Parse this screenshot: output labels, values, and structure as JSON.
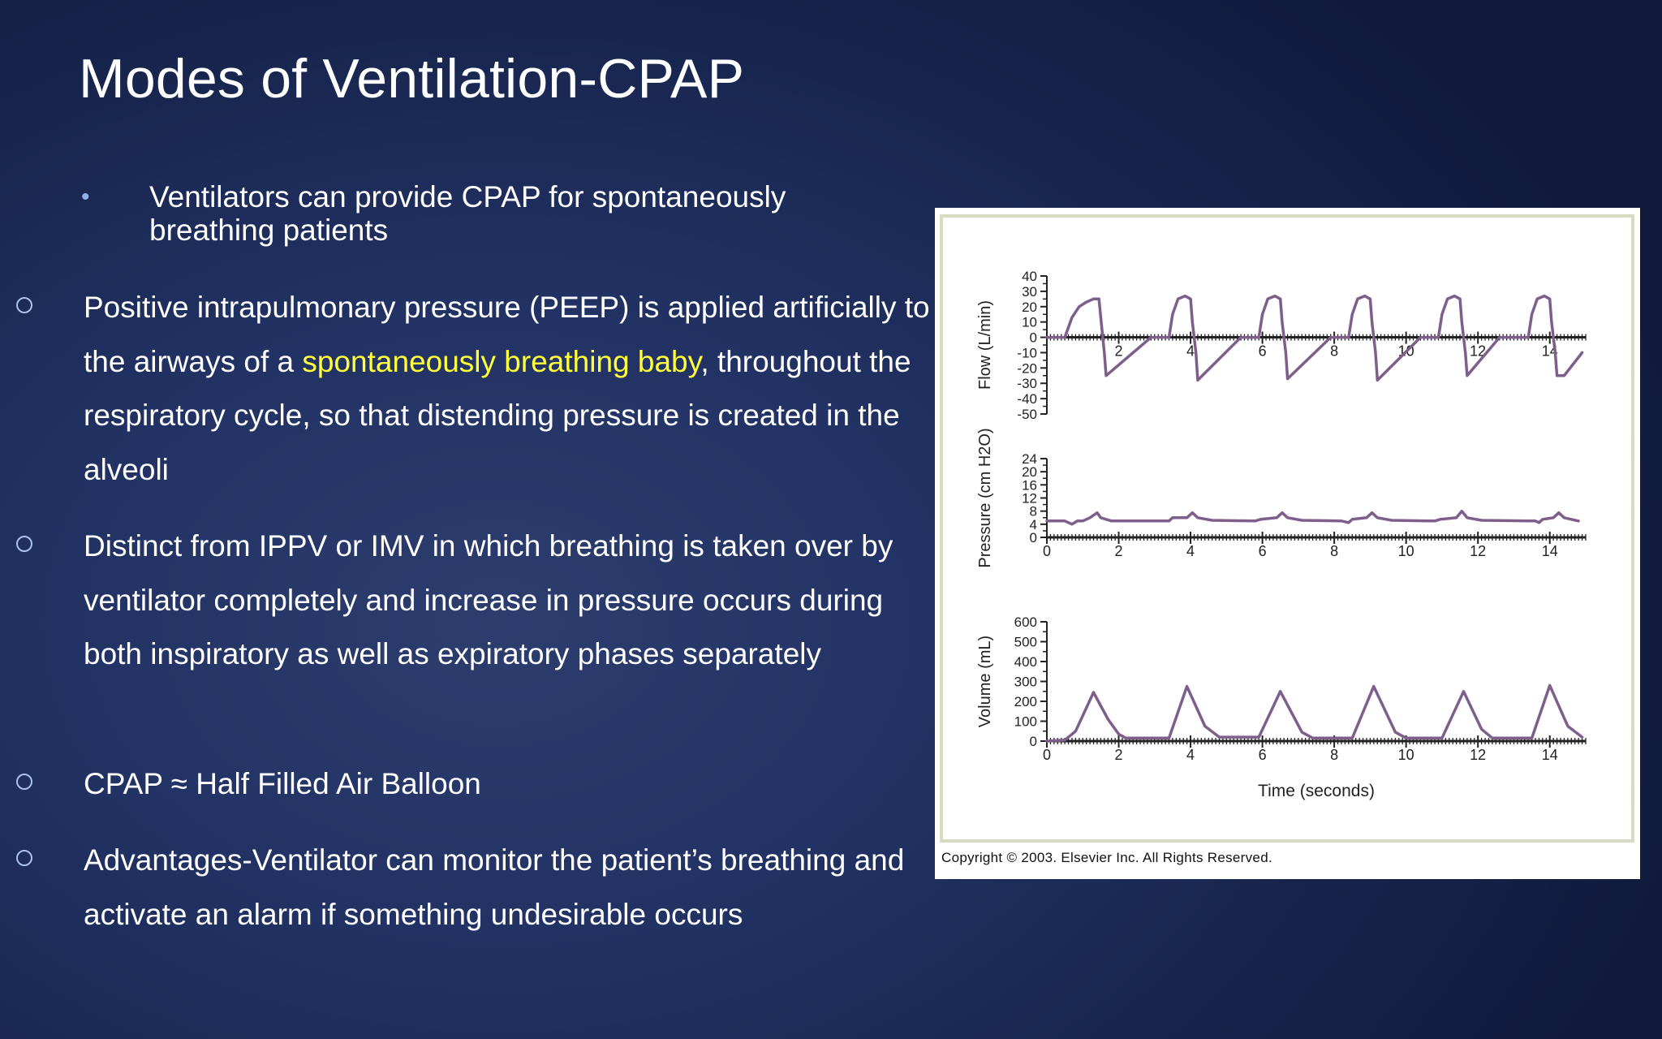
{
  "slide": {
    "title": "Modes of Ventilation-CPAP",
    "sub_bullet": {
      "marker": "•",
      "text": "Ventilators can provide CPAP for spontaneously breathing patients"
    },
    "bullets": [
      {
        "text_before": "Positive intrapulmonary pressure (PEEP) is applied artificially to the airways of a ",
        "highlight": "spontaneously breathing baby",
        "text_after": ", throughout the respiratory cycle, so that distending pressure is created in the alveoli"
      },
      {
        "text_before": "Distinct from IPPV or IMV in which breathing is taken over by ventilator completely and increase in pressure occurs during both inspiratory as well as expiratory phases separately",
        "highlight": "",
        "text_after": ""
      },
      {
        "text_before": "CPAP ≈ Half Filled Air Balloon",
        "highlight": "",
        "text_after": ""
      },
      {
        "text_before": "Advantages-Ventilator can monitor the patient’s breathing and activate an alarm if something undesirable occurs",
        "highlight": "",
        "text_after": ""
      }
    ],
    "colors": {
      "highlight": "#ffff3a",
      "trace": "#7e5f8c",
      "axis": "#222222"
    }
  },
  "figure": {
    "copyright": "Copyright © 2003. Elsevier Inc. All Rights Reserved."
  },
  "chart_data": [
    {
      "type": "line",
      "ylabel": "Flow (L/min)",
      "xlabel": "",
      "xlim": [
        0,
        15
      ],
      "ylim": [
        -50,
        40
      ],
      "x_ticks": [
        2,
        4,
        6,
        8,
        10,
        12,
        14
      ],
      "y_ticks": [
        -50,
        -40,
        -30,
        -20,
        -10,
        0,
        10,
        20,
        30,
        40
      ],
      "series": [
        {
          "points": [
            [
              0,
              0
            ],
            [
              0.5,
              0
            ],
            [
              0.7,
              13
            ],
            [
              0.9,
              20
            ],
            [
              1.1,
              23
            ],
            [
              1.3,
              25
            ],
            [
              1.45,
              25
            ],
            [
              1.5,
              13
            ],
            [
              1.6,
              -10
            ],
            [
              1.65,
              -25
            ],
            [
              2.9,
              0
            ],
            [
              3.4,
              0
            ],
            [
              3.5,
              15
            ],
            [
              3.65,
              25
            ],
            [
              3.85,
              27
            ],
            [
              4.0,
              25
            ],
            [
              4.05,
              10
            ],
            [
              4.15,
              -10
            ],
            [
              4.2,
              -28
            ],
            [
              5.4,
              0
            ],
            [
              5.9,
              0
            ],
            [
              6.0,
              15
            ],
            [
              6.15,
              25
            ],
            [
              6.35,
              27
            ],
            [
              6.5,
              25
            ],
            [
              6.55,
              10
            ],
            [
              6.65,
              -10
            ],
            [
              6.7,
              -27
            ],
            [
              7.9,
              0
            ],
            [
              8.4,
              0
            ],
            [
              8.5,
              15
            ],
            [
              8.65,
              25
            ],
            [
              8.85,
              27
            ],
            [
              9.0,
              25
            ],
            [
              9.05,
              10
            ],
            [
              9.15,
              -10
            ],
            [
              9.2,
              -28
            ],
            [
              10.4,
              0
            ],
            [
              10.9,
              0
            ],
            [
              11.0,
              15
            ],
            [
              11.15,
              25
            ],
            [
              11.35,
              27
            ],
            [
              11.5,
              25
            ],
            [
              11.55,
              10
            ],
            [
              11.65,
              -10
            ],
            [
              11.7,
              -25
            ],
            [
              12.6,
              0
            ],
            [
              13.4,
              0
            ],
            [
              13.5,
              15
            ],
            [
              13.65,
              25
            ],
            [
              13.85,
              27
            ],
            [
              14.0,
              25
            ],
            [
              14.05,
              10
            ],
            [
              14.15,
              -10
            ],
            [
              14.2,
              -25
            ],
            [
              14.4,
              -25
            ],
            [
              14.9,
              -10
            ]
          ]
        }
      ]
    },
    {
      "type": "line",
      "ylabel": "Pressure (cm H2O)",
      "xlabel": "",
      "xlim": [
        0,
        15
      ],
      "ylim": [
        0,
        24
      ],
      "x_ticks": [
        0,
        2,
        4,
        6,
        8,
        10,
        12,
        14
      ],
      "x_tick_labels": [
        "0",
        "2",
        "4",
        "6",
        "8",
        "10",
        "12",
        "14"
      ],
      "y_ticks": [
        0,
        4,
        8,
        12,
        16,
        20,
        24
      ],
      "series": [
        {
          "points": [
            [
              0,
              5
            ],
            [
              0.5,
              5
            ],
            [
              0.7,
              4
            ],
            [
              0.85,
              5
            ],
            [
              1.0,
              5
            ],
            [
              1.2,
              6
            ],
            [
              1.4,
              7.5
            ],
            [
              1.5,
              6
            ],
            [
              1.8,
              5
            ],
            [
              2.5,
              5
            ],
            [
              3.4,
              5
            ],
            [
              3.5,
              6
            ],
            [
              3.9,
              6
            ],
            [
              4.05,
              7.5
            ],
            [
              4.2,
              6
            ],
            [
              4.6,
              5.2
            ],
            [
              5.8,
              5
            ],
            [
              5.95,
              5.5
            ],
            [
              6.4,
              6
            ],
            [
              6.55,
              7.5
            ],
            [
              6.7,
              6
            ],
            [
              7.1,
              5.2
            ],
            [
              8.2,
              5
            ],
            [
              8.4,
              4.5
            ],
            [
              8.5,
              5.5
            ],
            [
              8.9,
              6
            ],
            [
              9.05,
              7.5
            ],
            [
              9.2,
              6
            ],
            [
              9.6,
              5.2
            ],
            [
              10.6,
              5
            ],
            [
              10.8,
              5
            ],
            [
              10.95,
              5.5
            ],
            [
              11.4,
              6
            ],
            [
              11.55,
              8
            ],
            [
              11.7,
              6
            ],
            [
              12.1,
              5.2
            ],
            [
              13.4,
              5
            ],
            [
              13.6,
              5
            ],
            [
              13.7,
              4.5
            ],
            [
              13.8,
              5.5
            ],
            [
              14.1,
              6
            ],
            [
              14.25,
              7.5
            ],
            [
              14.4,
              6
            ],
            [
              14.8,
              5
            ]
          ]
        }
      ]
    },
    {
      "type": "line",
      "ylabel": "Volume (mL)",
      "xlabel": "Time (seconds)",
      "xlim": [
        0,
        15
      ],
      "ylim": [
        0,
        600
      ],
      "x_ticks": [
        0,
        2,
        4,
        6,
        8,
        10,
        12,
        14
      ],
      "x_tick_labels": [
        "0",
        "2",
        "4",
        "6",
        "8",
        "10",
        "12",
        "14"
      ],
      "y_ticks": [
        0,
        100,
        200,
        300,
        400,
        500,
        600
      ],
      "series": [
        {
          "points": [
            [
              0,
              0
            ],
            [
              0.5,
              5
            ],
            [
              0.8,
              50
            ],
            [
              1.3,
              245
            ],
            [
              1.7,
              110
            ],
            [
              2.0,
              35
            ],
            [
              2.2,
              15
            ],
            [
              3.4,
              15
            ],
            [
              3.9,
              275
            ],
            [
              4.4,
              75
            ],
            [
              4.8,
              20
            ],
            [
              5.9,
              20
            ],
            [
              6.5,
              250
            ],
            [
              7.1,
              45
            ],
            [
              7.4,
              15
            ],
            [
              8.5,
              15
            ],
            [
              9.1,
              275
            ],
            [
              9.7,
              45
            ],
            [
              10.0,
              15
            ],
            [
              11.0,
              15
            ],
            [
              11.6,
              250
            ],
            [
              12.1,
              60
            ],
            [
              12.4,
              15
            ],
            [
              13.5,
              15
            ],
            [
              14.0,
              280
            ],
            [
              14.5,
              75
            ],
            [
              14.9,
              20
            ]
          ]
        }
      ]
    }
  ]
}
